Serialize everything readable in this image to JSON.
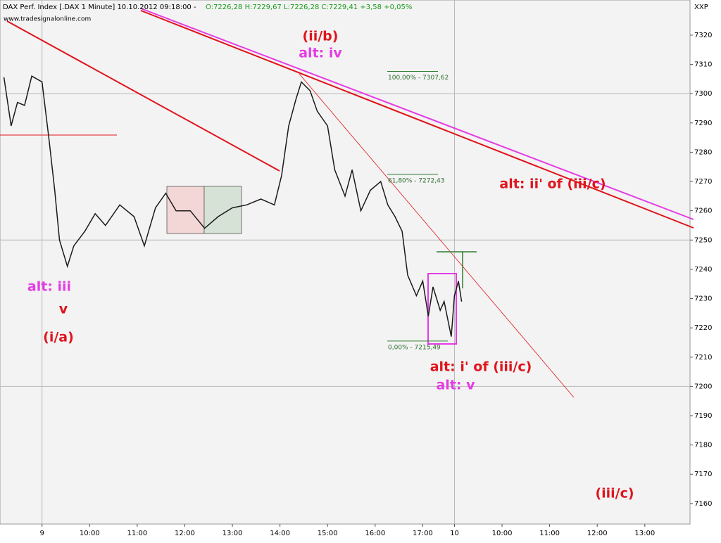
{
  "chart_data": {
    "type": "line",
    "title": "DAX Perf. Index [.DAX  1 Minute] 10.10.2012 09:18:00 -",
    "subtitle": "O:7226,28 H:7229,67 L:7226,28 C:7229,41 +3,58 +0,05%",
    "source": "www.tradesignalonline.com",
    "symbol_label": "XXP",
    "color": "#1a1a1a",
    "x": [
      -48,
      -39,
      -31,
      -22,
      -13,
      0,
      9,
      16,
      22,
      32,
      40,
      54,
      67,
      80,
      98,
      116,
      129,
      143,
      156,
      169,
      187,
      205,
      222,
      240,
      258,
      276,
      293,
      302,
      311,
      320,
      327,
      338,
      347,
      360,
      369,
      382,
      391,
      402,
      414,
      427,
      436,
      445,
      454,
      461,
      472,
      480,
      487,
      493,
      502,
      507,
      516,
      520,
      525,
      529
    ],
    "values": [
      7305.6,
      7289,
      7297,
      7296,
      7306,
      7304,
      7284,
      7267,
      7250,
      7241,
      7248,
      7253,
      7259,
      7255,
      7262,
      7258,
      7248,
      7261,
      7266,
      7260,
      7260,
      7254,
      7258,
      7261,
      7262,
      7264,
      7262,
      7272,
      7289,
      7298,
      7304,
      7301,
      7294,
      7289,
      7274,
      7265,
      7274,
      7260,
      7267,
      7270,
      7262,
      7258,
      7253,
      7238,
      7231,
      7236,
      7224,
      7234,
      7226,
      7229,
      7217,
      7231,
      7236,
      7229
    ],
    "xlim": [
      -53,
      817
    ],
    "ylim": [
      7153,
      7332
    ],
    "yticks": [
      7160,
      7170,
      7180,
      7190,
      7200,
      7210,
      7220,
      7230,
      7240,
      7250,
      7260,
      7270,
      7280,
      7290,
      7300,
      7310,
      7320
    ],
    "ygrid": [
      7200,
      7250,
      7300
    ],
    "xticks": [
      {
        "value": 0,
        "label": "9"
      },
      {
        "value": 60,
        "label": "10:00"
      },
      {
        "value": 120,
        "label": "11:00"
      },
      {
        "value": 180,
        "label": "12:00"
      },
      {
        "value": 240,
        "label": "13:00"
      },
      {
        "value": 300,
        "label": "14:00"
      },
      {
        "value": 360,
        "label": "15:00"
      },
      {
        "value": 420,
        "label": "16:00"
      },
      {
        "value": 480,
        "label": "17:00"
      },
      {
        "value": 520,
        "label": "10"
      },
      {
        "value": 580,
        "label": "10:00"
      },
      {
        "value": 640,
        "label": "11:00"
      },
      {
        "value": 700,
        "label": "12:00"
      },
      {
        "value": 760,
        "label": "13:00"
      }
    ],
    "xgrid": [
      0,
      520
    ],
    "fib_levels": [
      {
        "value": 7307.62,
        "label": "100,00% - 7307,62"
      },
      {
        "value": 7272.43,
        "label": "61,80% - 7272,43"
      },
      {
        "value": 7215.49,
        "label": "0,00% - 7215,49"
      }
    ],
    "annotations": [
      "(ii/b)",
      "alt: iv",
      "alt: iii",
      "v",
      "(i/a)",
      "alt: ii' of (iii/c)",
      "alt: i' of (iii/c)",
      "alt: v",
      "(iii/c)"
    ]
  }
}
